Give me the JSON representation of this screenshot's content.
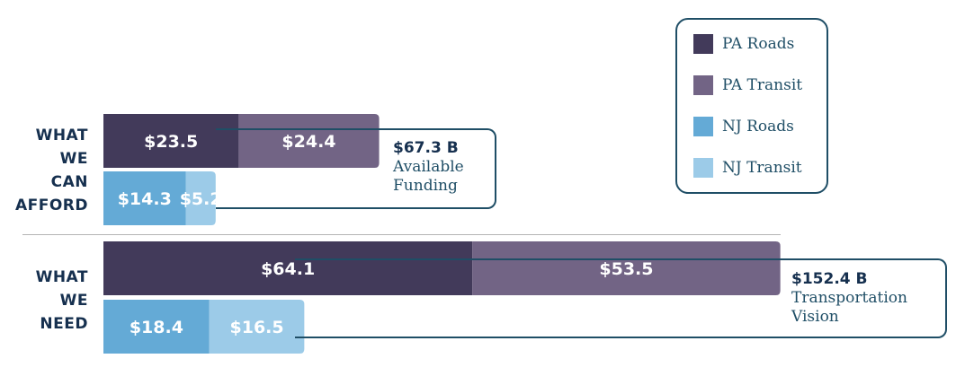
{
  "chart_data": {
    "type": "bar",
    "stacked": true,
    "units": "$ billions",
    "groups": [
      {
        "label": [
          "WHAT",
          "WE",
          "CAN",
          "AFFORD"
        ],
        "total_value": "$67.3 B",
        "total_label": [
          "Available",
          "Funding"
        ],
        "rows": [
          [
            {
              "series": "PA Roads",
              "value": 23.5,
              "label": "$23.5"
            },
            {
              "series": "PA Transit",
              "value": 24.4,
              "label": "$24.4"
            }
          ],
          [
            {
              "series": "NJ Roads",
              "value": 14.3,
              "label": "$14.3"
            },
            {
              "series": "NJ Transit",
              "value": 5.2,
              "label": "$5.2"
            }
          ]
        ]
      },
      {
        "label": [
          "WHAT",
          "WE",
          "NEED"
        ],
        "total_value": "$152.4 B",
        "total_label": [
          "Transportation",
          "Vision"
        ],
        "rows": [
          [
            {
              "series": "PA Roads",
              "value": 64.1,
              "label": "$64.1"
            },
            {
              "series": "PA Transit",
              "value": 53.5,
              "label": "$53.5"
            }
          ],
          [
            {
              "series": "NJ Roads",
              "value": 18.4,
              "label": "$18.4"
            },
            {
              "series": "NJ Transit",
              "value": 16.5,
              "label": "$16.5"
            }
          ]
        ]
      }
    ],
    "legend": {
      "placement": "top-right",
      "items": [
        {
          "name": "PA Roads",
          "color": "#423a5a"
        },
        {
          "name": "PA Transit",
          "color": "#726485"
        },
        {
          "name": "NJ Roads",
          "color": "#64aad6"
        },
        {
          "name": "NJ Transit",
          "color": "#9ccbe8"
        }
      ]
    }
  }
}
